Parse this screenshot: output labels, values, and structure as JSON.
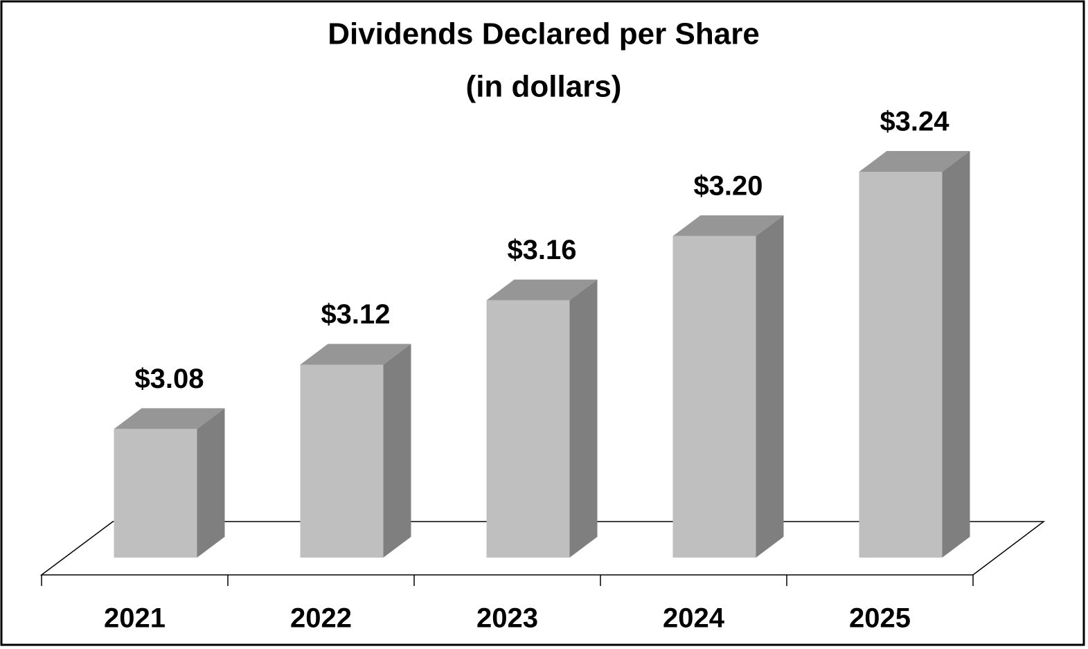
{
  "chart_data": {
    "type": "bar",
    "title": "Dividends Declared per Share",
    "subtitle": "(in dollars)",
    "categories": [
      "2021",
      "2022",
      "2023",
      "2024",
      "2025"
    ],
    "values": [
      3.08,
      3.12,
      3.16,
      3.2,
      3.24
    ],
    "value_labels": [
      "$3.08",
      "$3.12",
      "$3.16",
      "$3.20",
      "$3.24"
    ],
    "color": "#bfbfbf",
    "ylim": [
      3,
      3.24
    ]
  }
}
